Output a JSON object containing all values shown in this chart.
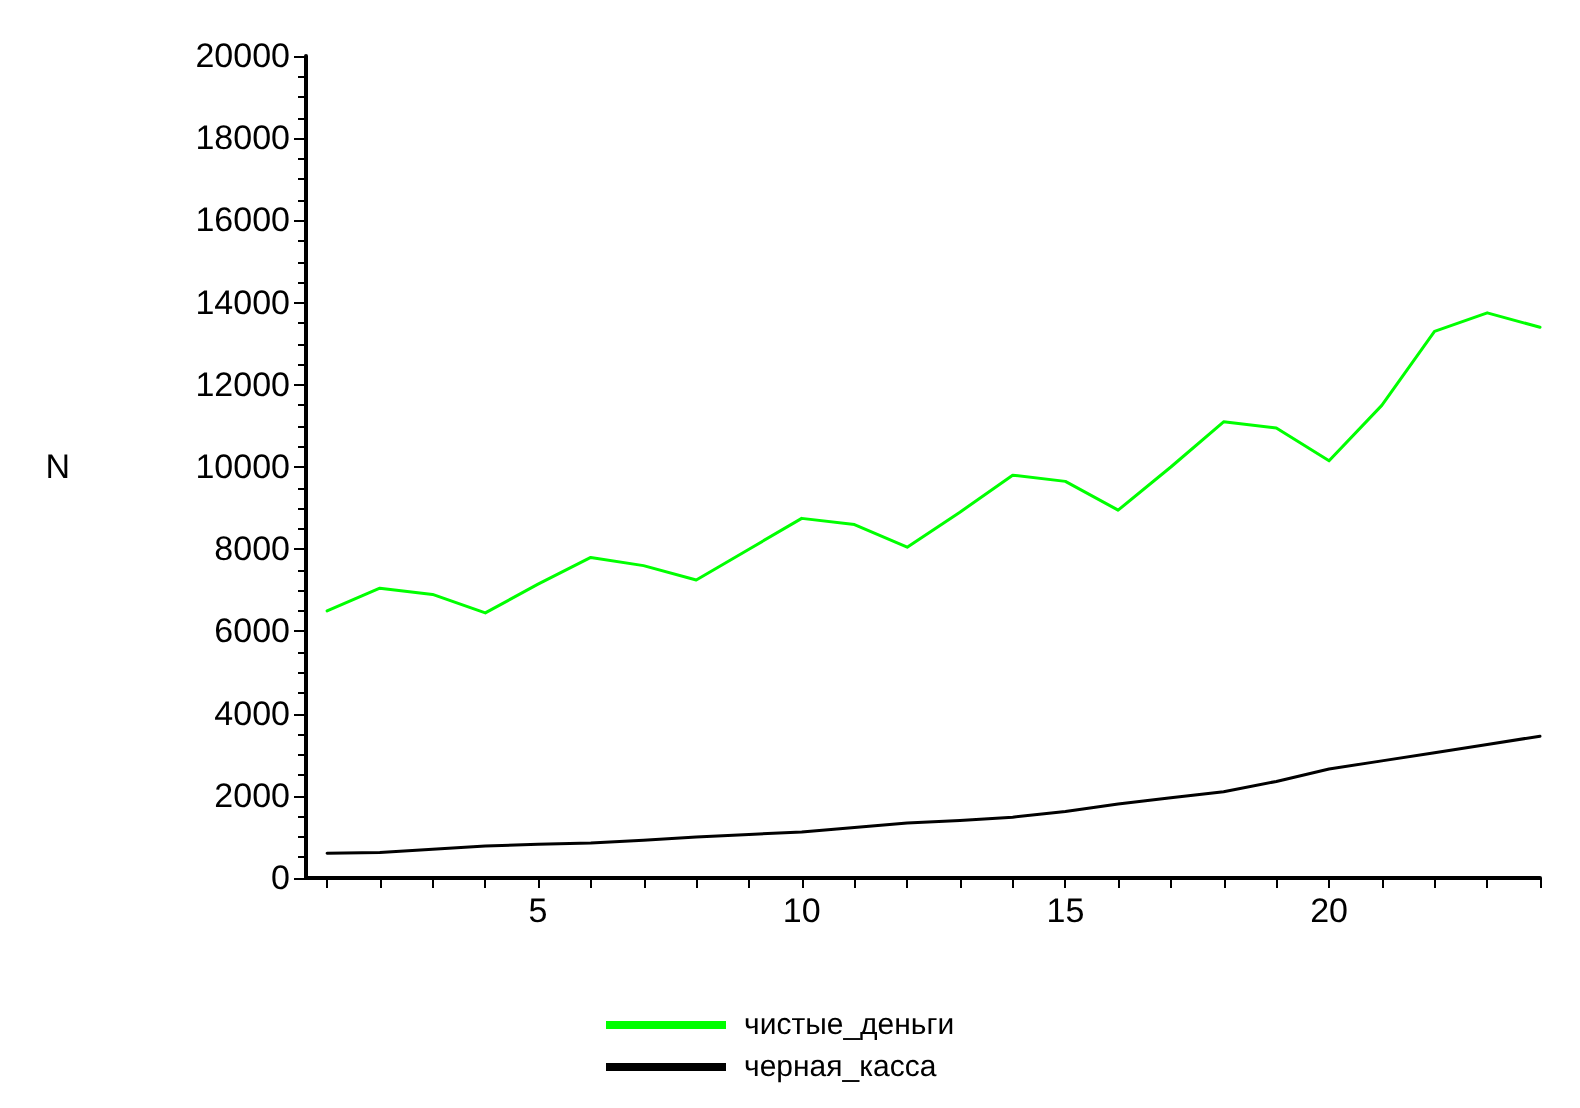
{
  "chart_data": {
    "type": "line",
    "ylabel": "N",
    "x": [
      1,
      2,
      3,
      4,
      5,
      6,
      7,
      8,
      9,
      10,
      11,
      12,
      13,
      14,
      15,
      16,
      17,
      18,
      19,
      20,
      21,
      22,
      23,
      24
    ],
    "series": [
      {
        "name": "чистые_деньги",
        "color": "#00ff00",
        "values": [
          6500,
          7050,
          6900,
          6450,
          7150,
          7800,
          7600,
          7250,
          8000,
          8750,
          8600,
          8050,
          8900,
          9800,
          9650,
          8950,
          10000,
          11100,
          10950,
          10150,
          11500,
          13300,
          13750,
          13400
        ]
      },
      {
        "name": "черная_касса",
        "color": "#000000",
        "values": [
          600,
          620,
          700,
          780,
          820,
          850,
          920,
          1000,
          1060,
          1120,
          1230,
          1340,
          1400,
          1480,
          1620,
          1800,
          1950,
          2100,
          2350,
          2650,
          2850,
          3050,
          3250,
          3450
        ]
      }
    ],
    "xlim": [
      0.6,
      24
    ],
    "xticks": [
      {
        "value": 1,
        "label": null
      },
      {
        "value": 2,
        "label": null
      },
      {
        "value": 3,
        "label": null
      },
      {
        "value": 4,
        "label": null
      },
      5,
      {
        "value": 6,
        "label": null
      },
      {
        "value": 7,
        "label": null
      },
      {
        "value": 8,
        "label": null
      },
      {
        "value": 9,
        "label": null
      },
      10,
      {
        "value": 11,
        "label": null
      },
      {
        "value": 12,
        "label": null
      },
      {
        "value": 13,
        "label": null
      },
      {
        "value": 14,
        "label": null
      },
      15,
      {
        "value": 16,
        "label": null
      },
      {
        "value": 17,
        "label": null
      },
      {
        "value": 18,
        "label": null
      },
      {
        "value": 19,
        "label": null
      },
      20,
      {
        "value": 21,
        "label": null
      },
      {
        "value": 22,
        "label": null
      },
      {
        "value": 23,
        "label": null
      },
      {
        "value": 24,
        "label": null
      }
    ],
    "ylim": [
      0,
      20000
    ],
    "yticks": [
      0,
      2000,
      4000,
      6000,
      8000,
      10000,
      12000,
      14000,
      16000,
      18000,
      20000
    ],
    "grid": false,
    "legend": "bottom",
    "marker": "none",
    "line_style": "solid"
  }
}
